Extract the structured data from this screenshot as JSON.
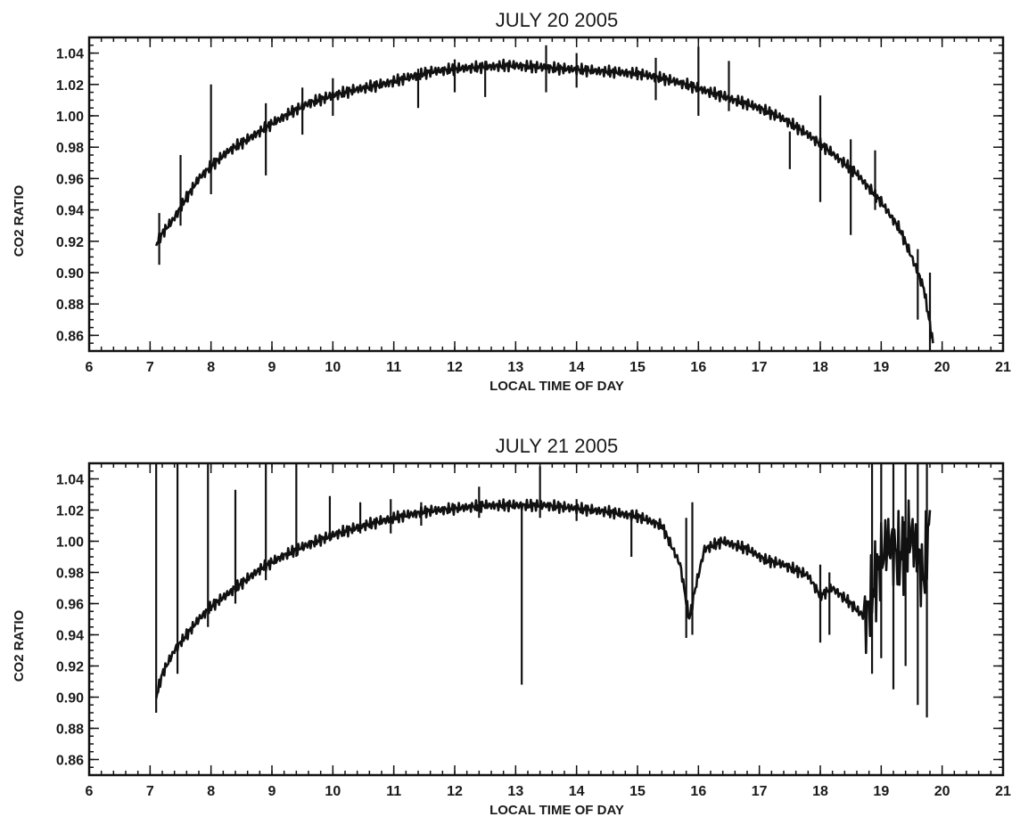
{
  "chart_data": [
    {
      "type": "line",
      "title": "JULY 20 2005",
      "xlabel": "LOCAL TIME OF DAY",
      "ylabel": "CO2 RATIO",
      "xlim": [
        6,
        21
      ],
      "ylim": [
        0.85,
        1.05
      ],
      "xticks": [
        "6",
        "7",
        "8",
        "9",
        "10",
        "11",
        "12",
        "13",
        "14",
        "15",
        "16",
        "17",
        "18",
        "19",
        "20",
        "21"
      ],
      "yticks": [
        "0.86",
        "0.88",
        "0.90",
        "0.92",
        "0.94",
        "0.96",
        "0.98",
        "1.00",
        "1.02",
        "1.04"
      ],
      "grid": false,
      "legend": "none",
      "series": [
        {
          "x": [
            7.1,
            7.2,
            7.4,
            7.6,
            7.8,
            8.0,
            8.3,
            8.6,
            9.0,
            9.3,
            9.6,
            10.0,
            10.4,
            10.8,
            11.2,
            11.6,
            12.0,
            12.4,
            12.8,
            13.0,
            13.4,
            13.8,
            14.2,
            14.6,
            15.0,
            15.4,
            15.8,
            16.2,
            16.6,
            17.0,
            17.4,
            17.8,
            18.2,
            18.6,
            19.0,
            19.3,
            19.5,
            19.7,
            19.85
          ],
          "values": [
            0.918,
            0.925,
            0.935,
            0.948,
            0.96,
            0.968,
            0.978,
            0.985,
            0.995,
            1.002,
            1.008,
            1.013,
            1.017,
            1.02,
            1.024,
            1.028,
            1.03,
            1.031,
            1.032,
            1.032,
            1.031,
            1.03,
            1.029,
            1.028,
            1.027,
            1.024,
            1.02,
            1.015,
            1.01,
            1.005,
            0.998,
            0.988,
            0.976,
            0.963,
            0.945,
            0.928,
            0.91,
            0.89,
            0.855
          ]
        }
      ],
      "spikes": [
        {
          "x": 7.15,
          "low": 0.905,
          "high": 0.938
        },
        {
          "x": 7.5,
          "low": 0.93,
          "high": 0.975
        },
        {
          "x": 8.0,
          "low": 0.95,
          "high": 1.02
        },
        {
          "x": 8.9,
          "low": 0.962,
          "high": 1.008
        },
        {
          "x": 9.5,
          "low": 0.988,
          "high": 1.018
        },
        {
          "x": 10.0,
          "low": 1.0,
          "high": 1.024
        },
        {
          "x": 11.4,
          "low": 1.005,
          "high": 1.03
        },
        {
          "x": 12.0,
          "low": 1.015,
          "high": 1.036
        },
        {
          "x": 12.5,
          "low": 1.012,
          "high": 1.035
        },
        {
          "x": 13.5,
          "low": 1.015,
          "high": 1.045
        },
        {
          "x": 14.0,
          "low": 1.018,
          "high": 1.04
        },
        {
          "x": 15.3,
          "low": 1.01,
          "high": 1.037
        },
        {
          "x": 16.0,
          "low": 1.0,
          "high": 1.044
        },
        {
          "x": 16.5,
          "low": 1.003,
          "high": 1.035
        },
        {
          "x": 17.5,
          "low": 0.966,
          "high": 0.99
        },
        {
          "x": 18.0,
          "low": 0.945,
          "high": 1.013
        },
        {
          "x": 18.5,
          "low": 0.924,
          "high": 0.985
        },
        {
          "x": 18.9,
          "low": 0.94,
          "high": 0.978
        },
        {
          "x": 19.6,
          "low": 0.87,
          "high": 0.915
        },
        {
          "x": 19.8,
          "low": 0.85,
          "high": 0.9
        }
      ]
    },
    {
      "type": "line",
      "title": "JULY 21 2005",
      "xlabel": "LOCAL TIME OF DAY",
      "ylabel": "CO2 RATIO",
      "xlim": [
        6,
        21
      ],
      "ylim": [
        0.85,
        1.05
      ],
      "xticks": [
        "6",
        "7",
        "8",
        "9",
        "10",
        "11",
        "12",
        "13",
        "14",
        "15",
        "16",
        "17",
        "18",
        "19",
        "20",
        "21"
      ],
      "yticks": [
        "0.86",
        "0.88",
        "0.90",
        "0.92",
        "0.94",
        "0.96",
        "0.98",
        "1.00",
        "1.02",
        "1.04"
      ],
      "grid": false,
      "legend": "none",
      "series": [
        {
          "x": [
            7.1,
            7.2,
            7.4,
            7.6,
            7.8,
            8.0,
            8.4,
            8.8,
            9.2,
            9.6,
            10.0,
            10.5,
            11.0,
            11.5,
            12.0,
            12.5,
            13.0,
            13.5,
            14.0,
            14.5,
            15.0,
            15.4,
            15.7,
            15.85,
            15.95,
            16.1,
            16.4,
            16.8,
            17.1,
            17.4,
            17.8,
            18.0,
            18.2,
            18.5,
            18.75,
            18.9,
            19.1,
            19.3,
            19.5,
            19.7,
            19.8
          ],
          "values": [
            0.9,
            0.915,
            0.93,
            0.94,
            0.95,
            0.958,
            0.97,
            0.982,
            0.991,
            0.998,
            1.004,
            1.01,
            1.015,
            1.019,
            1.021,
            1.023,
            1.023,
            1.023,
            1.021,
            1.019,
            1.016,
            1.01,
            0.985,
            0.95,
            0.97,
            0.995,
            1.0,
            0.995,
            0.988,
            0.985,
            0.978,
            0.965,
            0.97,
            0.96,
            0.95,
            0.975,
            1.0,
            0.99,
            1.005,
            0.975,
            1.02
          ]
        }
      ],
      "spikes": [
        {
          "x": 7.1,
          "low": 0.89,
          "high": 1.05
        },
        {
          "x": 7.45,
          "low": 0.915,
          "high": 1.05
        },
        {
          "x": 7.95,
          "low": 0.945,
          "high": 1.05
        },
        {
          "x": 8.4,
          "low": 0.96,
          "high": 1.033
        },
        {
          "x": 8.9,
          "low": 0.975,
          "high": 1.05
        },
        {
          "x": 9.4,
          "low": 0.99,
          "high": 1.05
        },
        {
          "x": 9.95,
          "low": 1.0,
          "high": 1.029
        },
        {
          "x": 10.45,
          "low": 1.005,
          "high": 1.025
        },
        {
          "x": 10.95,
          "low": 1.005,
          "high": 1.027
        },
        {
          "x": 11.45,
          "low": 1.01,
          "high": 1.025
        },
        {
          "x": 12.4,
          "low": 1.015,
          "high": 1.035
        },
        {
          "x": 13.1,
          "low": 0.908,
          "high": 1.023
        },
        {
          "x": 13.4,
          "low": 1.015,
          "high": 1.048
        },
        {
          "x": 14.0,
          "low": 1.013,
          "high": 1.027
        },
        {
          "x": 14.9,
          "low": 0.99,
          "high": 1.02
        },
        {
          "x": 15.8,
          "low": 0.938,
          "high": 1.015
        },
        {
          "x": 15.9,
          "low": 0.94,
          "high": 1.025
        },
        {
          "x": 18.0,
          "low": 0.935,
          "high": 0.985
        },
        {
          "x": 18.15,
          "low": 0.94,
          "high": 0.98
        },
        {
          "x": 18.85,
          "low": 0.915,
          "high": 1.05
        },
        {
          "x": 19.0,
          "low": 0.925,
          "high": 1.05
        },
        {
          "x": 19.2,
          "low": 0.905,
          "high": 1.05
        },
        {
          "x": 19.4,
          "low": 0.92,
          "high": 1.05
        },
        {
          "x": 19.6,
          "low": 0.895,
          "high": 1.05
        },
        {
          "x": 19.75,
          "low": 0.887,
          "high": 1.05
        }
      ]
    }
  ]
}
